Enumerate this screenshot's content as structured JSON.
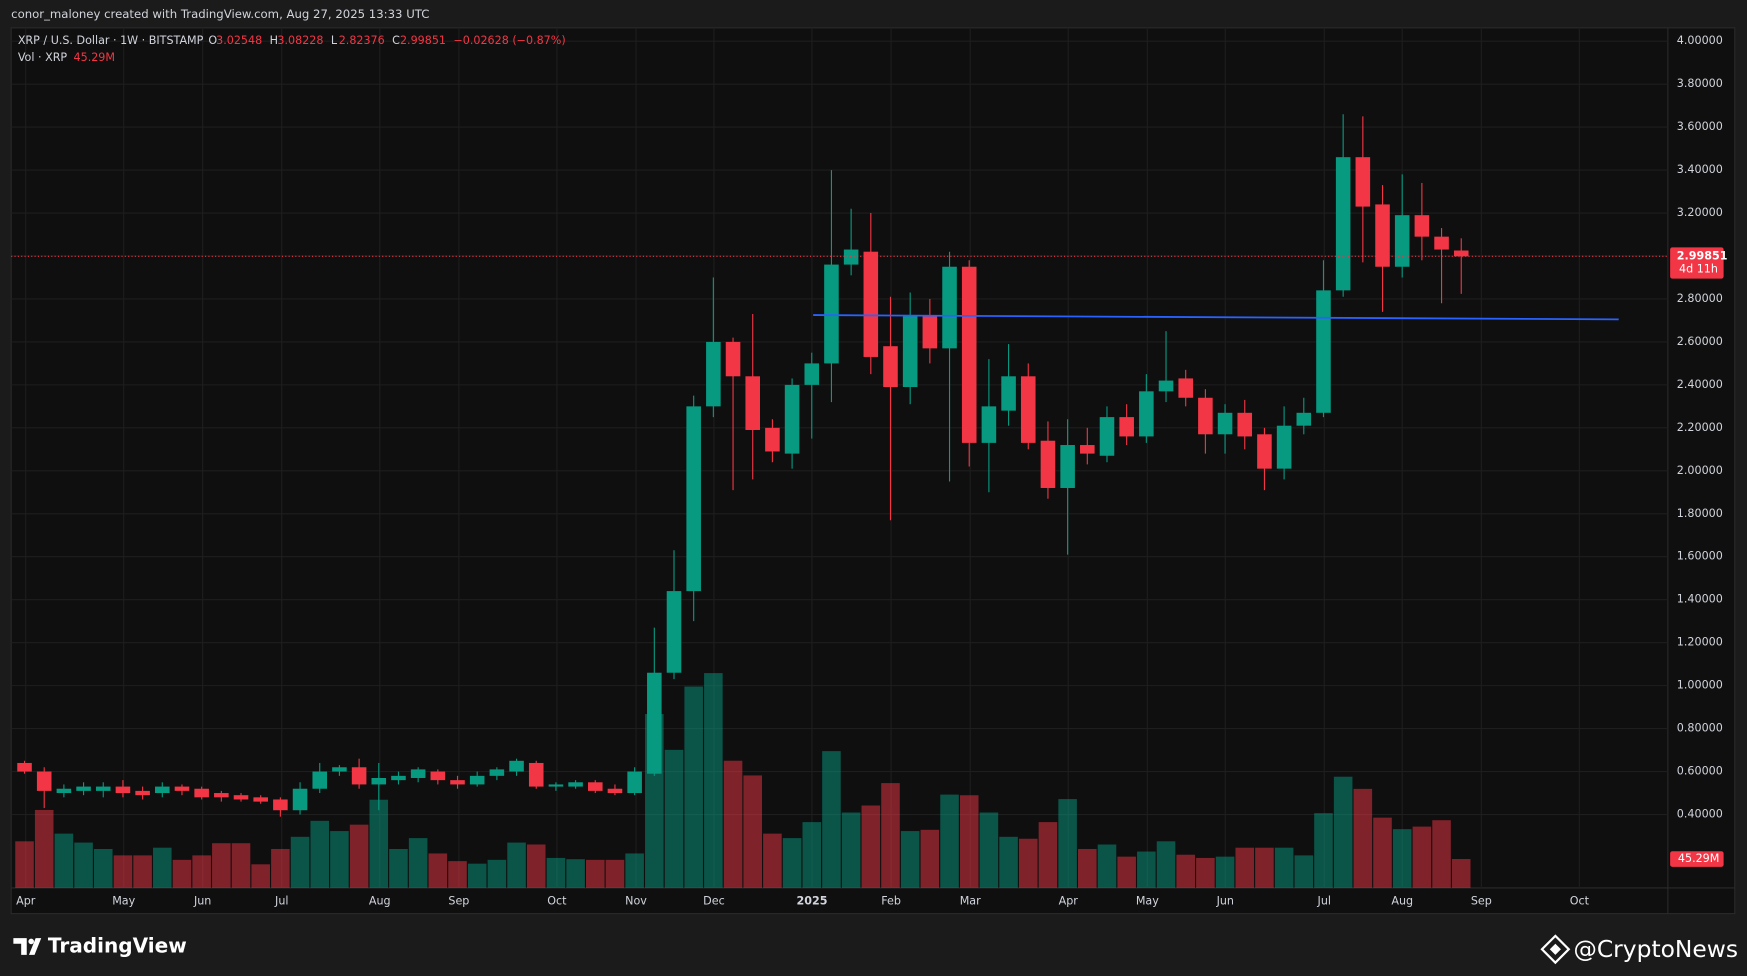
{
  "header": {
    "credit": "conor_maloney created with TradingView.com, Aug 27, 2025 13:33 UTC"
  },
  "chart_data": {
    "type": "candlestick",
    "symbol": "XRP / U.S. Dollar · 1W · BITSTAMP",
    "ohlc_letters": [
      "O",
      "H",
      "L",
      "C"
    ],
    "change": "−0.02628 (−0.87%)",
    "volume_title": "Vol · XRP",
    "volume_value_label": "45.29M",
    "countdown": "4d 11h",
    "up_color": "#089981",
    "down_color": "#f23645",
    "open": [
      0.64,
      0.6,
      0.5,
      0.51,
      0.51,
      0.53,
      0.51,
      0.5,
      0.53,
      0.52,
      0.5,
      0.49,
      0.48,
      0.47,
      0.42,
      0.52,
      0.6,
      0.62,
      0.54,
      0.56,
      0.57,
      0.6,
      0.56,
      0.54,
      0.58,
      0.6,
      0.64,
      0.53,
      0.53,
      0.55,
      0.52,
      0.5,
      0.59,
      1.06,
      1.44,
      2.3,
      2.6,
      2.44,
      2.2,
      2.08,
      2.4,
      2.5,
      2.96,
      3.02,
      2.58,
      2.39,
      2.72,
      2.57,
      2.95,
      2.13,
      2.28,
      2.44,
      2.14,
      1.92,
      2.12,
      2.07,
      2.25,
      2.16,
      2.37,
      2.43,
      2.34,
      2.17,
      2.27,
      2.17,
      2.01,
      2.21,
      2.27,
      2.84,
      3.46,
      3.24,
      2.95,
      3.19,
      3.09,
      3.02548
    ],
    "high": [
      0.65,
      0.62,
      0.54,
      0.55,
      0.55,
      0.56,
      0.53,
      0.55,
      0.54,
      0.53,
      0.51,
      0.5,
      0.49,
      0.48,
      0.55,
      0.64,
      0.63,
      0.66,
      0.64,
      0.6,
      0.62,
      0.61,
      0.58,
      0.6,
      0.62,
      0.66,
      0.65,
      0.55,
      0.56,
      0.56,
      0.54,
      0.62,
      1.27,
      1.63,
      2.35,
      2.9,
      2.62,
      2.73,
      2.24,
      2.43,
      2.55,
      3.4,
      3.22,
      3.2,
      2.81,
      2.83,
      2.8,
      3.02,
      2.98,
      2.52,
      2.59,
      2.5,
      2.23,
      2.24,
      2.2,
      2.3,
      2.31,
      2.45,
      2.65,
      2.47,
      2.38,
      2.31,
      2.33,
      2.2,
      2.3,
      2.34,
      2.98,
      3.66,
      3.65,
      3.33,
      3.38,
      3.34,
      3.13,
      3.08228
    ],
    "low": [
      0.59,
      0.43,
      0.48,
      0.49,
      0.48,
      0.48,
      0.47,
      0.48,
      0.49,
      0.47,
      0.46,
      0.46,
      0.45,
      0.39,
      0.4,
      0.5,
      0.58,
      0.52,
      0.42,
      0.54,
      0.55,
      0.54,
      0.52,
      0.53,
      0.56,
      0.58,
      0.52,
      0.51,
      0.52,
      0.5,
      0.49,
      0.49,
      0.58,
      1.03,
      1.3,
      2.25,
      1.91,
      1.96,
      2.04,
      2.01,
      2.15,
      2.32,
      2.91,
      2.45,
      1.77,
      2.31,
      2.5,
      1.95,
      2.02,
      1.9,
      2.21,
      2.1,
      1.87,
      1.61,
      2.03,
      2.04,
      2.12,
      2.13,
      2.32,
      2.3,
      2.08,
      2.08,
      2.1,
      1.91,
      1.96,
      2.17,
      2.25,
      2.81,
      2.97,
      2.74,
      2.9,
      2.98,
      2.78,
      2.82376
    ],
    "close": [
      0.6,
      0.51,
      0.52,
      0.53,
      0.53,
      0.5,
      0.49,
      0.53,
      0.51,
      0.48,
      0.48,
      0.47,
      0.46,
      0.42,
      0.52,
      0.6,
      0.62,
      0.54,
      0.57,
      0.58,
      0.61,
      0.56,
      0.54,
      0.58,
      0.61,
      0.65,
      0.53,
      0.54,
      0.55,
      0.51,
      0.5,
      0.6,
      1.06,
      1.44,
      2.3,
      2.6,
      2.44,
      2.19,
      2.09,
      2.4,
      2.5,
      2.96,
      3.03,
      2.53,
      2.39,
      2.72,
      2.57,
      2.95,
      2.13,
      2.3,
      2.44,
      2.13,
      1.92,
      2.12,
      2.08,
      2.25,
      2.16,
      2.37,
      2.42,
      2.34,
      2.17,
      2.27,
      2.16,
      2.01,
      2.21,
      2.27,
      2.84,
      3.46,
      3.23,
      2.95,
      3.19,
      3.09,
      3.03,
      2.99851
    ],
    "volume": [
      73,
      122,
      85,
      71,
      61,
      51,
      51,
      63,
      44,
      51,
      70,
      70,
      37,
      61,
      80,
      105,
      89,
      99,
      138,
      61,
      78,
      54,
      42,
      38,
      44,
      71,
      68,
      47,
      45,
      44,
      44,
      54,
      272,
      216,
      315,
      336,
      199,
      176,
      85,
      78,
      103,
      214,
      118,
      129,
      164,
      89,
      91,
      146,
      145,
      118,
      80,
      77,
      103,
      139,
      61,
      68,
      49,
      57,
      73,
      52,
      47,
      49,
      63,
      63,
      63,
      51,
      117,
      174,
      155,
      110,
      92,
      96,
      106,
      45.29
    ],
    "vol_ylim": [
      0,
      1345
    ],
    "trendline": {
      "x": [
        40.07,
        81
      ],
      "y": [
        2.725,
        2.705
      ],
      "color": "#2962ff"
    },
    "xlim": [
      -0.68,
      83.5
    ],
    "xticks": [
      {
        "value": 0.06,
        "label": "Apr"
      },
      {
        "value": 5.04,
        "label": "May"
      },
      {
        "value": 9.05,
        "label": "Jun"
      },
      {
        "value": 13.07,
        "label": "Jul"
      },
      {
        "value": 18.05,
        "label": "Aug"
      },
      {
        "value": 22.07,
        "label": "Sep"
      },
      {
        "value": 27.05,
        "label": "Oct"
      },
      {
        "value": 31.07,
        "label": "Nov"
      },
      {
        "value": 35.03,
        "label": "Dec"
      },
      {
        "value": 40.01,
        "label": "2025"
      },
      {
        "value": 44.03,
        "label": "Feb"
      },
      {
        "value": 48.05,
        "label": "Mar"
      },
      {
        "value": 53.03,
        "label": "Apr"
      },
      {
        "value": 57.05,
        "label": "May"
      },
      {
        "value": 61.01,
        "label": "Jun"
      },
      {
        "value": 66.04,
        "label": "Jul"
      },
      {
        "value": 70.0,
        "label": "Aug"
      },
      {
        "value": 74.02,
        "label": "Sep"
      },
      {
        "value": 79.0,
        "label": "Oct"
      }
    ],
    "ylim": [
      0.058,
      4.062
    ],
    "yticks": [
      {
        "value": 0.4,
        "label": "0.40000"
      },
      {
        "value": 0.6,
        "label": "0.60000"
      },
      {
        "value": 0.8,
        "label": "0.80000"
      },
      {
        "value": 1.0,
        "label": "1.00000"
      },
      {
        "value": 1.2,
        "label": "1.20000"
      },
      {
        "value": 1.4,
        "label": "1.40000"
      },
      {
        "value": 1.6,
        "label": "1.60000"
      },
      {
        "value": 1.8,
        "label": "1.80000"
      },
      {
        "value": 2.0,
        "label": "2.00000"
      },
      {
        "value": 2.2,
        "label": "2.20000"
      },
      {
        "value": 2.4,
        "label": "2.40000"
      },
      {
        "value": 2.6,
        "label": "2.60000"
      },
      {
        "value": 2.8,
        "label": "2.80000"
      },
      {
        "value": 3.0,
        "label": "3.00000"
      },
      {
        "value": 3.2,
        "label": "3.20000"
      },
      {
        "value": 3.4,
        "label": "3.40000"
      },
      {
        "value": 3.6,
        "label": "3.60000"
      },
      {
        "value": 3.8,
        "label": "3.80000"
      },
      {
        "value": 4.0,
        "label": "4.00000"
      }
    ],
    "grid": true
  },
  "footer": {
    "brand": "TradingView",
    "watermark": "@CryptoNews"
  }
}
